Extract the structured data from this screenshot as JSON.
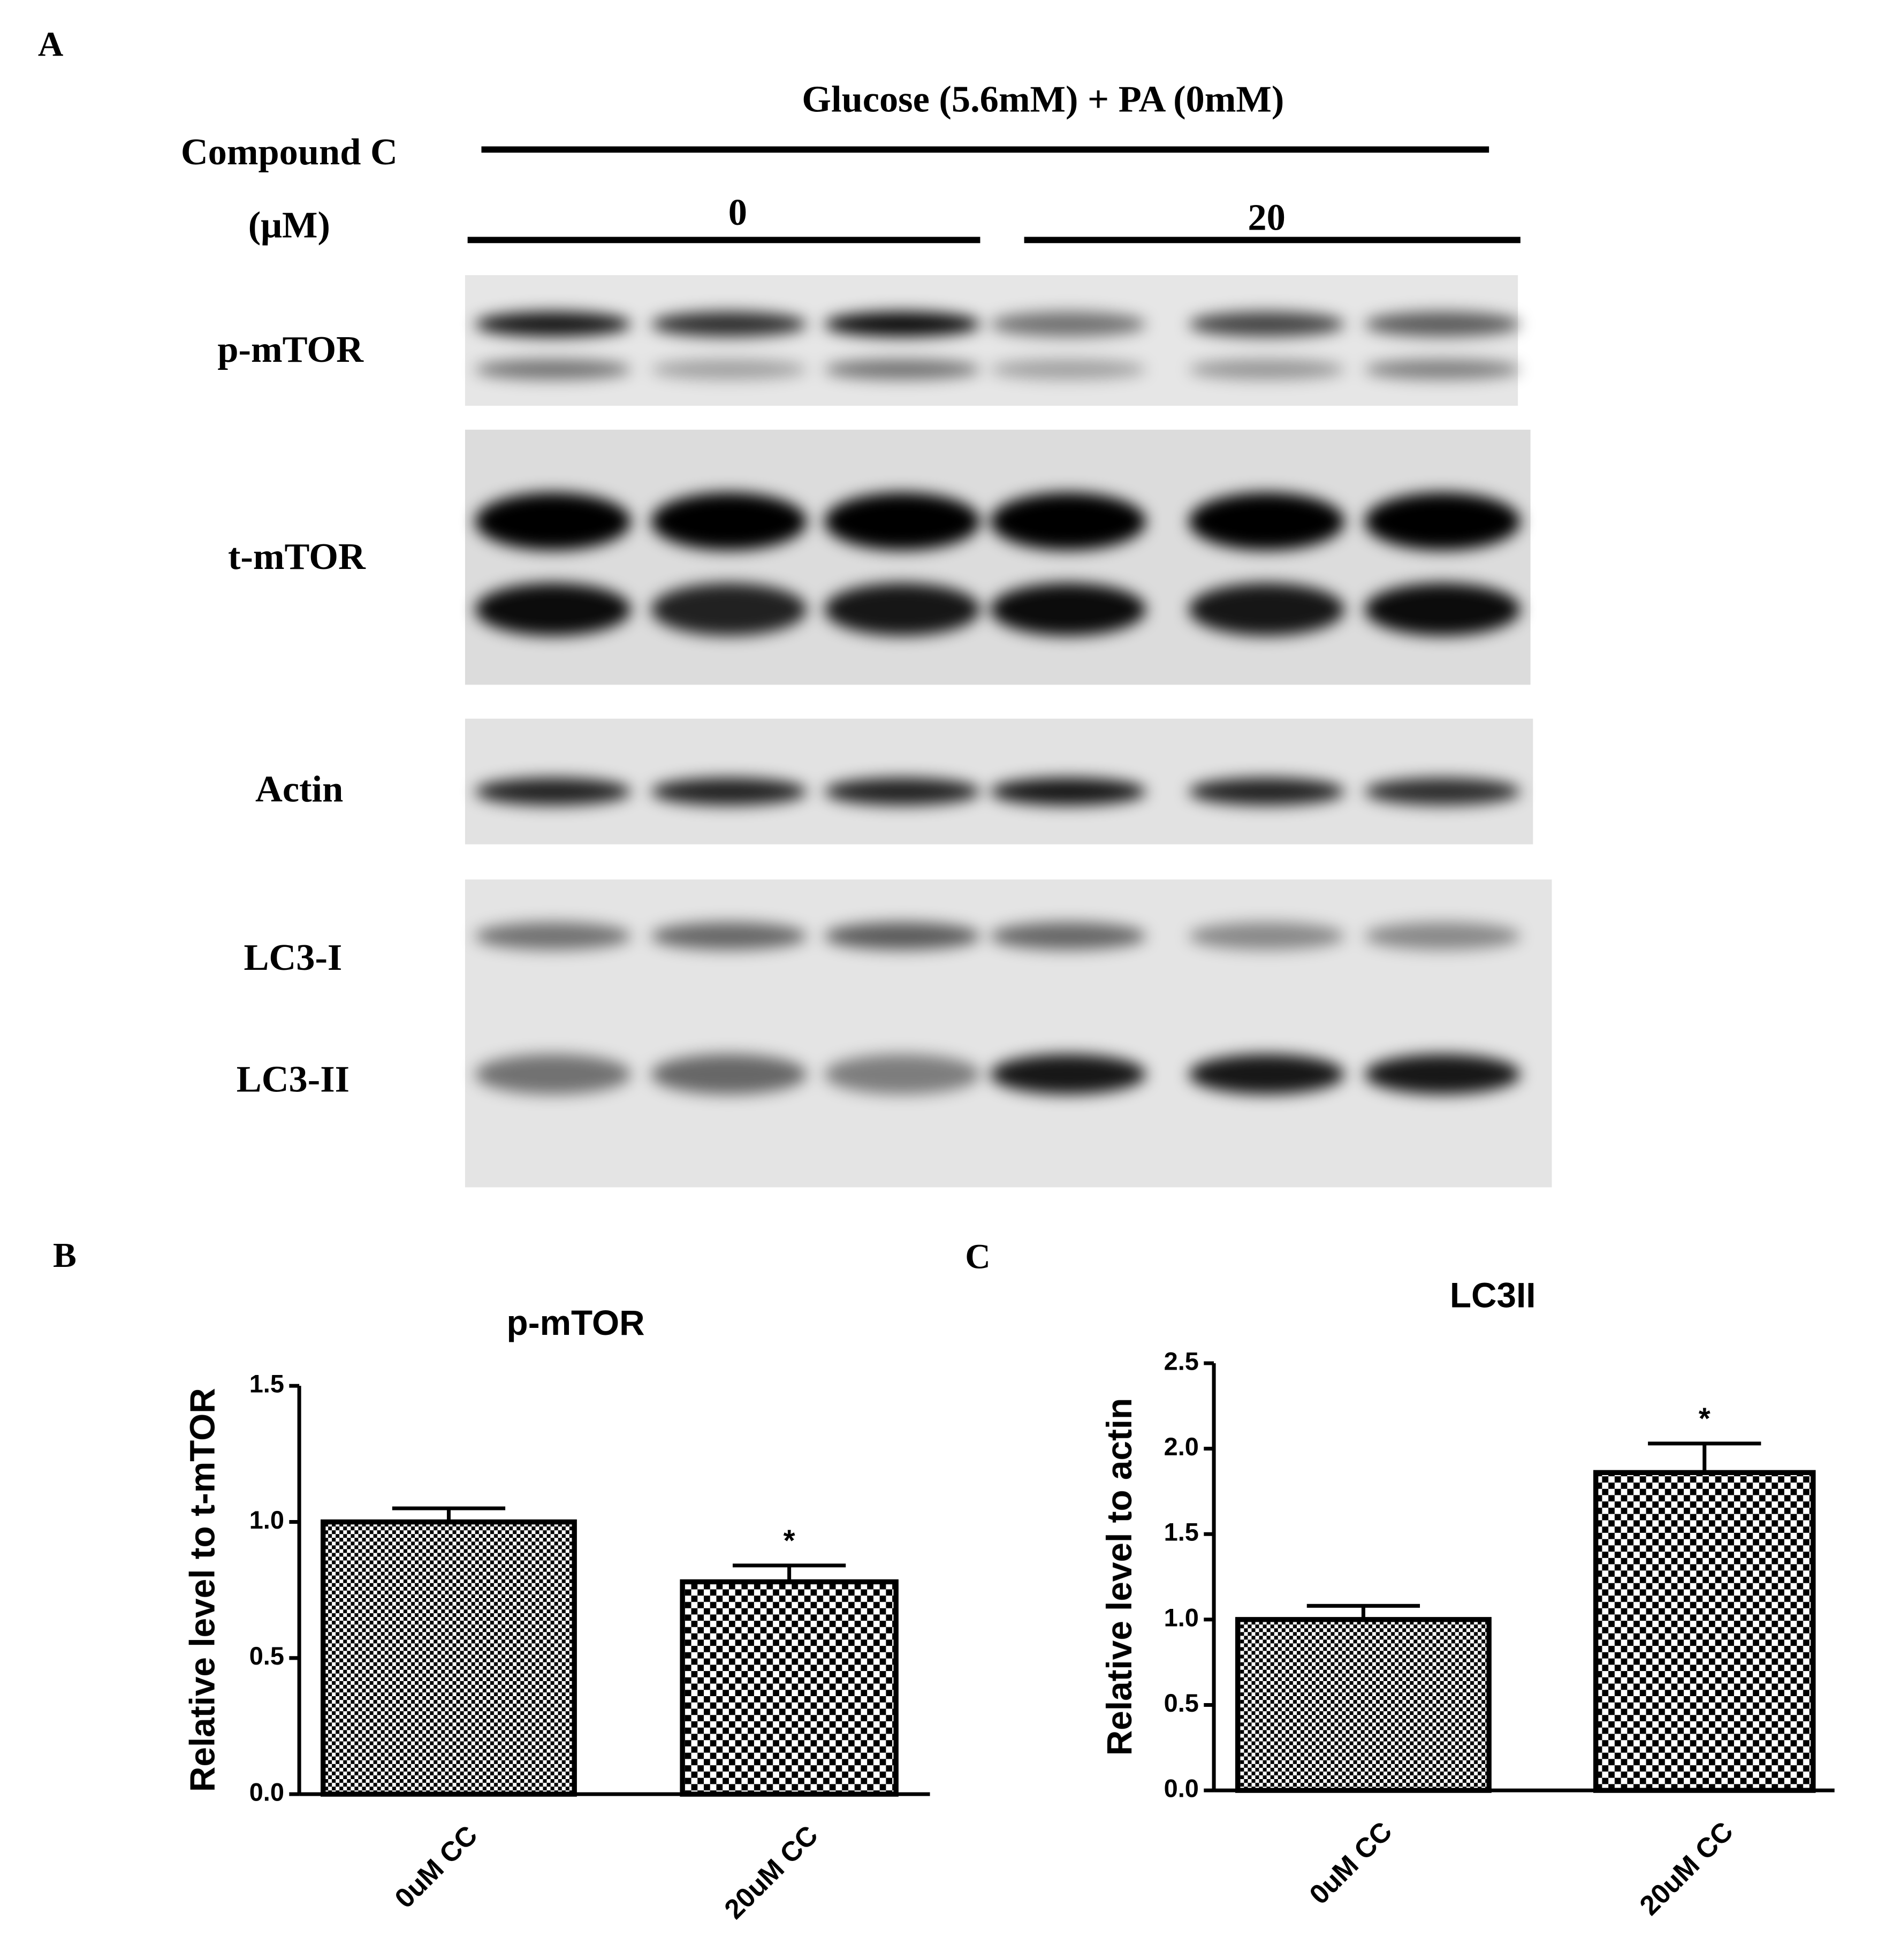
{
  "blot": {
    "panel_label": "A",
    "condition": "Glucose (5.6mM) + PA (0mM)",
    "treatment_label": "Compound C",
    "treatment_unit": "(μM)",
    "groups": [
      "0",
      "20"
    ],
    "bands": [
      "p-mTOR",
      "t-mTOR",
      "Actin",
      "LC3-I",
      "LC3-II"
    ]
  },
  "chart_data": [
    {
      "type": "bar",
      "panel_label": "B",
      "title": "p-mTOR",
      "y_label": "Relative level to t-mTOR",
      "categories": [
        "0uM CC",
        "20uM CC"
      ],
      "values": [
        1.0,
        0.78
      ],
      "errors": [
        0.05,
        0.06
      ],
      "significance": [
        null,
        "*"
      ],
      "ylim": [
        0,
        1.5
      ],
      "yticks": [
        {
          "value": 0,
          "label": "0.0"
        },
        0.5,
        {
          "value": 1,
          "label": "1.0"
        },
        1.5
      ],
      "color": "#000000"
    },
    {
      "type": "bar",
      "panel_label": "C",
      "title": "LC3II",
      "y_label": "Relative level to actin",
      "categories": [
        "0uM CC",
        "20uM CC"
      ],
      "values": [
        1.0,
        1.86
      ],
      "errors": [
        0.08,
        0.17
      ],
      "significance": [
        null,
        "*"
      ],
      "ylim": [
        0,
        2.5
      ],
      "yticks": [
        {
          "value": 0,
          "label": "0.0"
        },
        0.5,
        {
          "value": 1,
          "label": "1.0"
        },
        1.5,
        {
          "value": 2,
          "label": "2.0"
        },
        2.5
      ],
      "color": "#000000"
    }
  ]
}
